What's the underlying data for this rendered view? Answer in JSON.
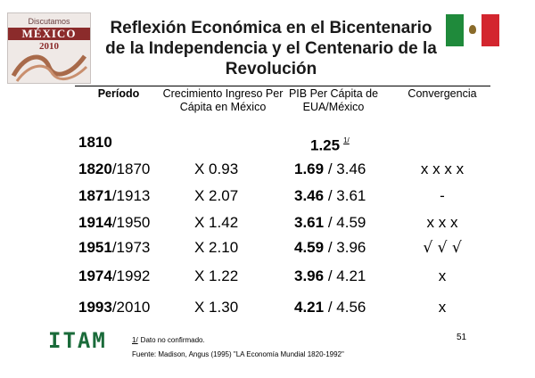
{
  "logo": {
    "top": "Discutamos",
    "name": "MÉXICO",
    "year": "2010"
  },
  "title": {
    "line1": "Reflexión Económica en el Bicentenario",
    "line2": "de la Independencia y el Centenario de la",
    "line3": "Revolución"
  },
  "table": {
    "headers": {
      "periodo": "Período",
      "crecimiento": "Crecimiento Ingreso Per Cápita en México",
      "pib": "PIB Per Cápita de EUA/México",
      "convergencia": "Convergencia"
    },
    "rows": [
      {
        "period_bold": "1810",
        "period_rest": "",
        "growth": "",
        "pib_bold": "1.25",
        "pib_rest": "",
        "pib_ref": "1/",
        "conv": ""
      },
      {
        "period_bold": "1820",
        "period_rest": "/1870",
        "growth": "X 0.93",
        "pib_bold": "1.69",
        "pib_rest": " / 3.46",
        "pib_ref": "",
        "conv": "x x x x"
      },
      {
        "period_bold": "1871",
        "period_rest": "/1913",
        "growth": "X 2.07",
        "pib_bold": "3.46",
        "pib_rest": " / 3.61",
        "pib_ref": "",
        "conv": "-"
      },
      {
        "period_bold": "1914",
        "period_rest": "/1950",
        "growth": "X 1.42",
        "pib_bold": "3.61",
        "pib_rest": " / 4.59",
        "pib_ref": "",
        "conv": "x x x"
      },
      {
        "period_bold": "1951",
        "period_rest": "/1973",
        "growth": "X 2.10",
        "pib_bold": "4.59",
        "pib_rest": " / 3.96",
        "pib_ref": "",
        "conv": "√ √ √"
      },
      {
        "period_bold": "1974",
        "period_rest": "/1992",
        "growth": "X 1.22",
        "pib_bold": "3.96",
        "pib_rest": " / 4.21",
        "pib_ref": "",
        "conv": "x"
      },
      {
        "period_bold": "1993",
        "period_rest": "/2010",
        "growth": "X 1.30",
        "pib_bold": "4.21",
        "pib_rest": " / 4.56",
        "pib_ref": "",
        "conv": "x"
      }
    ]
  },
  "footer": {
    "logo": "ITAM",
    "note_ref": "1/",
    "note_text": "Dato no confirmado.",
    "source": "Fuente: Madison, Angus (1995) \"LA Economía Mundial 1820-1992\"",
    "page_number": "51"
  },
  "colors": {
    "flag_green": "#1f8a3b",
    "flag_red": "#d3262f",
    "itam_green": "#1a6b3a",
    "logo_maroon": "#8b2b2b"
  }
}
